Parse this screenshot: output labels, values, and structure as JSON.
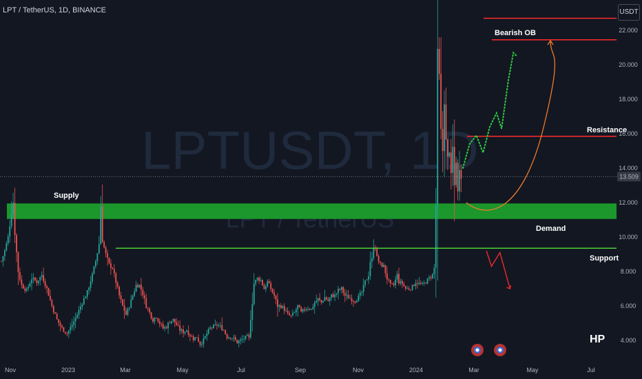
{
  "header": {
    "symbol_line": "LPT / TetherUS, 1D, BINANCE",
    "unit_button": "USDT"
  },
  "watermark": {
    "main": "LPTUSDT, 1D",
    "sub": "LPT / TetherUS"
  },
  "author_mark": "HP",
  "colors": {
    "background": "#131722",
    "up_candle": "#26a69a",
    "down_candle": "#ef5350",
    "supply_zone": "#1b9e2c",
    "support_line": "#4cd137",
    "resistance_line": "#ff2b2b",
    "projection_up": "#2ecc40",
    "projection_curve": "#f07b2a",
    "projection_down": "#ff2b2b"
  },
  "chart_data": {
    "type": "candlestick",
    "x_axis_labels": [
      "Nov",
      "2023",
      "Mar",
      "May",
      "Jul",
      "Sep",
      "Nov",
      "2024",
      "Mar",
      "May",
      "Jul"
    ],
    "y_axis_labels": [
      "4.000",
      "6.000",
      "8.000",
      "10.000",
      "12.000",
      "14.000",
      "16.000",
      "18.000",
      "20.000",
      "22.000"
    ],
    "ylim": [
      3.0,
      23.0
    ],
    "last_price": "13.509",
    "last_price_value": 13.509,
    "price_path": [
      [
        0,
        8.6
      ],
      [
        2,
        9.2
      ],
      [
        4,
        10.0
      ],
      [
        6,
        11.4
      ],
      [
        7,
        12.0
      ],
      [
        8,
        10.2
      ],
      [
        10,
        8.0
      ],
      [
        12,
        7.2
      ],
      [
        15,
        6.9
      ],
      [
        18,
        7.6
      ],
      [
        21,
        7.4
      ],
      [
        24,
        7.8
      ],
      [
        27,
        7.0
      ],
      [
        30,
        6.0
      ],
      [
        33,
        5.2
      ],
      [
        36,
        4.7
      ],
      [
        39,
        4.4
      ],
      [
        42,
        4.9
      ],
      [
        45,
        5.5
      ],
      [
        48,
        6.2
      ],
      [
        51,
        6.8
      ],
      [
        54,
        7.8
      ],
      [
        56,
        8.6
      ],
      [
        58,
        9.6
      ],
      [
        59,
        11.8
      ],
      [
        60,
        9.8
      ],
      [
        62,
        9.0
      ],
      [
        64,
        8.4
      ],
      [
        66,
        8.2
      ],
      [
        68,
        7.4
      ],
      [
        70,
        6.6
      ],
      [
        72,
        6.0
      ],
      [
        74,
        5.5
      ],
      [
        76,
        6.0
      ],
      [
        78,
        6.6
      ],
      [
        80,
        7.2
      ],
      [
        82,
        7.2
      ],
      [
        84,
        6.7
      ],
      [
        86,
        6.0
      ],
      [
        88,
        5.6
      ],
      [
        90,
        5.2
      ],
      [
        92,
        5.4
      ],
      [
        94,
        5.0
      ],
      [
        96,
        4.7
      ],
      [
        98,
        4.8
      ],
      [
        100,
        5.1
      ],
      [
        102,
        5.2
      ],
      [
        104,
        4.9
      ],
      [
        106,
        4.6
      ],
      [
        108,
        4.5
      ],
      [
        110,
        4.6
      ],
      [
        112,
        4.3
      ],
      [
        114,
        4.1
      ],
      [
        116,
        4.2
      ],
      [
        118,
        3.8
      ],
      [
        120,
        4.0
      ],
      [
        122,
        4.4
      ],
      [
        124,
        4.7
      ],
      [
        126,
        4.8
      ],
      [
        128,
        4.9
      ],
      [
        130,
        4.8
      ],
      [
        132,
        4.6
      ],
      [
        134,
        4.2
      ],
      [
        136,
        4.2
      ],
      [
        138,
        4.1
      ],
      [
        140,
        3.9
      ],
      [
        142,
        4.0
      ],
      [
        144,
        4.1
      ],
      [
        146,
        4.2
      ],
      [
        147,
        4.1
      ],
      [
        148,
        5.3
      ],
      [
        149,
        6.2
      ],
      [
        150,
        7.3
      ],
      [
        152,
        7.6
      ],
      [
        154,
        7.5
      ],
      [
        156,
        7.0
      ],
      [
        158,
        7.4
      ],
      [
        160,
        7.0
      ],
      [
        162,
        6.6
      ],
      [
        164,
        6.0
      ],
      [
        166,
        6.0
      ],
      [
        168,
        5.8
      ],
      [
        170,
        5.5
      ],
      [
        172,
        5.4
      ],
      [
        174,
        5.6
      ],
      [
        176,
        6.0
      ],
      [
        178,
        5.6
      ],
      [
        180,
        5.8
      ],
      [
        182,
        5.9
      ],
      [
        184,
        5.8
      ],
      [
        186,
        6.2
      ],
      [
        188,
        6.4
      ],
      [
        190,
        6.2
      ],
      [
        192,
        6.5
      ],
      [
        194,
        6.3
      ],
      [
        196,
        6.6
      ],
      [
        198,
        6.6
      ],
      [
        200,
        6.9
      ],
      [
        202,
        7.0
      ],
      [
        204,
        6.6
      ],
      [
        206,
        6.5
      ],
      [
        208,
        6.4
      ],
      [
        210,
        6.3
      ],
      [
        212,
        6.5
      ],
      [
        214,
        6.8
      ],
      [
        216,
        7.4
      ],
      [
        218,
        7.8
      ],
      [
        219,
        8.6
      ],
      [
        220,
        8.7
      ],
      [
        221,
        9.5
      ],
      [
        222,
        9.4
      ],
      [
        223,
        8.8
      ],
      [
        225,
        8.4
      ],
      [
        227,
        8.3
      ],
      [
        229,
        7.6
      ],
      [
        231,
        7.2
      ],
      [
        233,
        7.2
      ],
      [
        235,
        7.8
      ],
      [
        236,
        7.4
      ],
      [
        238,
        7.3
      ],
      [
        240,
        7.0
      ],
      [
        242,
        7.0
      ],
      [
        244,
        7.1
      ],
      [
        246,
        7.4
      ],
      [
        248,
        7.3
      ],
      [
        250,
        7.2
      ],
      [
        252,
        7.4
      ],
      [
        254,
        7.6
      ],
      [
        256,
        7.8
      ],
      [
        257,
        8.2
      ],
      [
        258,
        11.8
      ],
      [
        259,
        20.8
      ],
      [
        260,
        19.4
      ],
      [
        261,
        16.2
      ],
      [
        262,
        15.0
      ],
      [
        263,
        17.8
      ],
      [
        264,
        15.6
      ],
      [
        265,
        14.6
      ],
      [
        266,
        15.0
      ],
      [
        267,
        13.6
      ],
      [
        268,
        15.2
      ],
      [
        269,
        13.0
      ],
      [
        270,
        14.4
      ],
      [
        271,
        12.6
      ],
      [
        272,
        14.0
      ],
      [
        273,
        13.509
      ]
    ],
    "zones": [
      {
        "name": "Supply",
        "type": "band",
        "low": 11.05,
        "high": 11.95
      }
    ],
    "levels": [
      {
        "name": "Support",
        "value": 9.35
      },
      {
        "name": "Resistance",
        "value": 15.85
      },
      {
        "name": "Bearish OB",
        "upper": 22.7,
        "lower": 21.45
      }
    ],
    "annotations": {
      "supply": "Supply",
      "demand": "Demand",
      "support": "Support",
      "resistance": "Resistance",
      "bearish_ob": "Bearish OB"
    },
    "projections": {
      "dotted_up": [
        [
          274,
          14.0
        ],
        [
          278,
          15.4
        ],
        [
          282,
          15.9
        ],
        [
          286,
          14.9
        ],
        [
          290,
          16.4
        ],
        [
          294,
          17.2
        ],
        [
          297,
          16.3
        ],
        [
          301,
          19.1
        ],
        [
          304,
          20.7
        ],
        [
          306,
          20.5
        ]
      ],
      "curve": [
        [
          276,
          12.0
        ],
        [
          290,
          11.4
        ],
        [
          310,
          12.4
        ],
        [
          322,
          16.4
        ],
        [
          326,
          21.4
        ]
      ],
      "down": [
        [
          288,
          9.2
        ],
        [
          291,
          8.3
        ],
        [
          296,
          9.1
        ],
        [
          302,
          7.0
        ]
      ]
    }
  }
}
